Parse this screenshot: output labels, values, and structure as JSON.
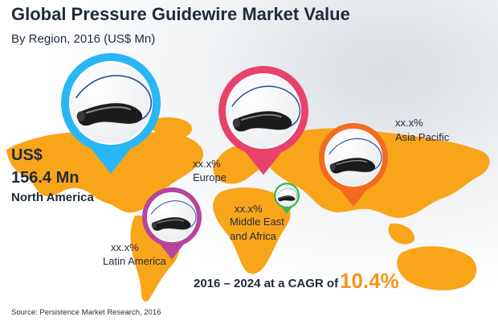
{
  "title": "Global Pressure Guidewire Market Value",
  "subtitle": "By Region, 2016 (US$ Mn)",
  "chart_data": {
    "type": "map",
    "regions": [
      {
        "name": "North America",
        "value_label_line1": "US$",
        "value_label_line2": "156.4 Mn",
        "value": 156.4,
        "color": "#29b6f6"
      },
      {
        "name": "Europe",
        "value_label": "xx.x%",
        "color": "#e8416b"
      },
      {
        "name": "Asia Pacific",
        "value_label": "xx.x%",
        "color": "#f26b21"
      },
      {
        "name_line1": "Middle East",
        "name_line2": "and Africa",
        "value_label": "xx.x%",
        "color": "#43b649"
      },
      {
        "name": "Latin America",
        "value_label": "xx.x%",
        "color": "#b6459c"
      }
    ]
  },
  "cagr": {
    "text": "2016 – 2024 at a CAGR of",
    "value": "10.4%"
  },
  "source": "Source: Persistence Market Research, 2016",
  "colors": {
    "map": "#f9a51a",
    "accent": "#f7941d",
    "text": "#1f2a3a"
  }
}
